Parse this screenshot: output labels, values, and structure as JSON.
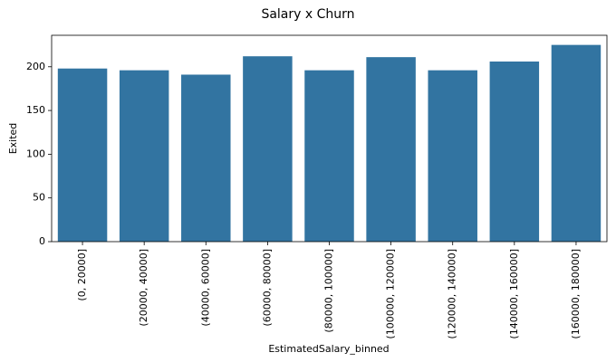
{
  "chart_data": {
    "type": "bar",
    "title": "Salary x Churn",
    "xlabel": "EstimatedSalary_binned",
    "ylabel": "Exited",
    "categories": [
      "(0, 20000]",
      "(20000, 40000]",
      "(40000, 60000]",
      "(60000, 80000]",
      "(80000, 100000]",
      "(100000, 120000]",
      "(120000, 140000]",
      "(140000, 160000]",
      "(160000, 180000]"
    ],
    "values": [
      198,
      196,
      191,
      212,
      196,
      211,
      196,
      206,
      225
    ],
    "ylim": [
      0,
      236
    ],
    "yticks": [
      0,
      50,
      100,
      150,
      200
    ],
    "grid": false,
    "bar_color": "#3274a1"
  }
}
